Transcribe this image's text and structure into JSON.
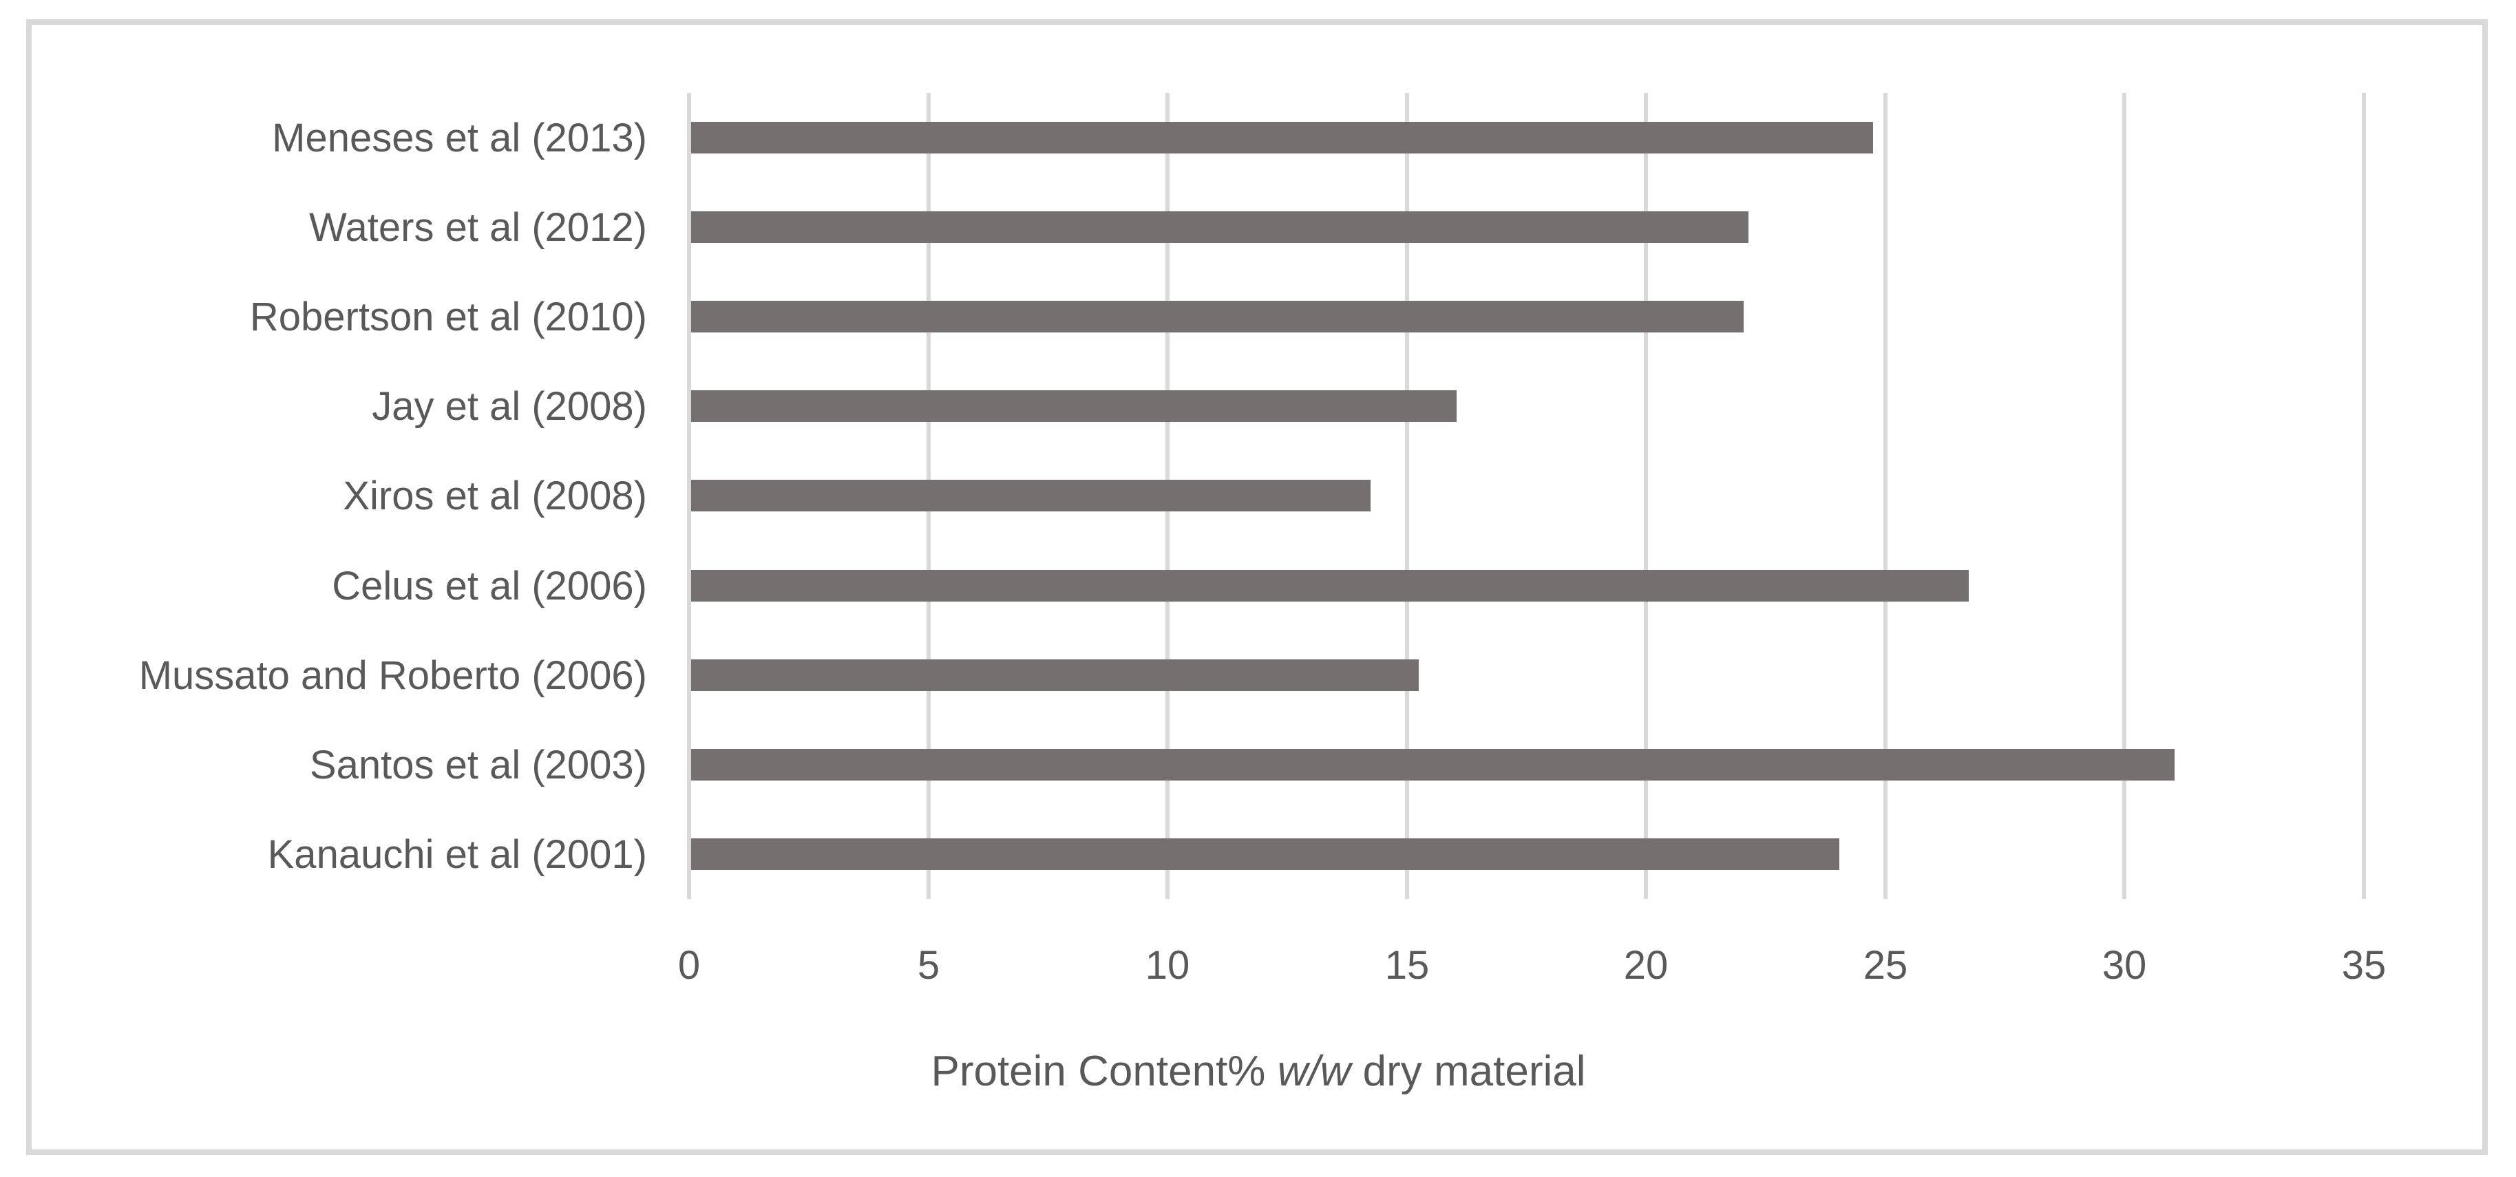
{
  "chart_data": {
    "type": "bar",
    "orientation": "horizontal",
    "title": "",
    "categories": [
      "Meneses et al (2013)",
      "Waters et al (2012)",
      "Robertson et al (2010)",
      "Jay et al (2008)",
      "Xiros et al (2008)",
      "Celus et al (2006)",
      "Mussato and Roberto (2006)",
      "Santos et al (2003)",
      "Kanauchi et al (2001)"
    ],
    "values": [
      24.7,
      22.1,
      22.0,
      16.0,
      14.2,
      26.7,
      15.2,
      31.0,
      24.0
    ],
    "xlabel": "Protein Content% w/w dry material",
    "xlabel_parts": {
      "prefix": "Protein Content% ",
      "italic": "w/w",
      "suffix": " dry material"
    },
    "xticks": [
      "0",
      "5",
      "10",
      "15",
      "20",
      "25",
      "30",
      "35"
    ],
    "xtick_values": [
      0,
      5,
      10,
      15,
      20,
      25,
      30,
      35
    ],
    "xlim": [
      0,
      35
    ],
    "grid": "vertical-gridlines-on",
    "legend": "none",
    "colors": {
      "bar": "#747070",
      "gridline": "#D9D9D9",
      "chart_border": "#D9D9D9",
      "text": "#595959"
    }
  }
}
